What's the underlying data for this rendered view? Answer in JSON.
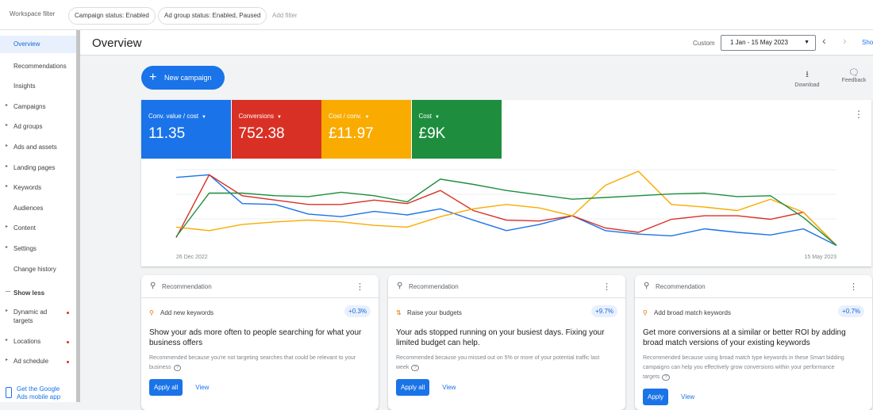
{
  "topbar": {
    "label": "Workspace filter",
    "chips": [
      "Campaign status: Enabled",
      "Ad group status: Enabled, Paused"
    ],
    "add_filter": "Add filter"
  },
  "sidebar": {
    "items": [
      {
        "label": "Overview",
        "active": true,
        "arrow": false,
        "dot": false
      },
      {
        "label": "Recommendations",
        "active": false,
        "arrow": false,
        "dot": false
      },
      {
        "label": "Insights",
        "active": false,
        "arrow": false,
        "dot": false
      },
      {
        "label": "Campaigns",
        "active": false,
        "arrow": true,
        "dot": false
      },
      {
        "label": "Ad groups",
        "active": false,
        "arrow": true,
        "dot": false
      },
      {
        "label": "Ads and assets",
        "active": false,
        "arrow": true,
        "dot": false
      },
      {
        "label": "Landing pages",
        "active": false,
        "arrow": true,
        "dot": false
      },
      {
        "label": "Keywords",
        "active": false,
        "arrow": true,
        "dot": false
      },
      {
        "label": "Audiences",
        "active": false,
        "arrow": false,
        "dot": false
      },
      {
        "label": "Content",
        "active": false,
        "arrow": true,
        "dot": false
      },
      {
        "label": "Settings",
        "active": false,
        "arrow": true,
        "dot": false
      },
      {
        "label": "Change history",
        "active": false,
        "arrow": false,
        "dot": false
      }
    ],
    "show_less": "Show less",
    "more_items": [
      {
        "label": "Dynamic ad targets",
        "active": false,
        "arrow": true,
        "dot": true
      },
      {
        "label": "Locations",
        "active": false,
        "arrow": true,
        "dot": true
      },
      {
        "label": "Ad schedule",
        "active": false,
        "arrow": true,
        "dot": true
      }
    ],
    "app_link": "Get the Google Ads mobile app"
  },
  "header": {
    "title": "Overview",
    "range_label": "Custom",
    "range": "1 Jan - 15 May 2023",
    "show": "Sho"
  },
  "actions": {
    "new_campaign": "New campaign",
    "download": "Download",
    "feedback": "Feedback"
  },
  "chart_data": {
    "type": "line",
    "ylim": [
      0,
      100
    ],
    "categories": [
      "26 Dec 2022",
      null,
      null,
      null,
      null,
      null,
      null,
      null,
      null,
      null,
      null,
      null,
      null,
      null,
      null,
      null,
      null,
      null,
      null,
      null,
      "15 May 2023"
    ],
    "series": [
      {
        "name": "Conv. value / cost",
        "summary": "11.35",
        "color": "#1a73e8",
        "values": [
          83,
          86,
          53,
          52,
          41,
          38,
          44,
          40,
          47,
          34,
          22,
          29,
          39,
          22,
          18,
          16,
          24,
          20,
          17,
          24,
          5
        ]
      },
      {
        "name": "Conversions",
        "summary": "752.38",
        "color": "#d93025",
        "values": [
          14,
          86,
          62,
          57,
          52,
          52,
          57,
          53,
          68,
          45,
          34,
          33,
          39,
          25,
          20,
          35,
          39,
          39,
          35,
          43,
          5
        ]
      },
      {
        "name": "Cost / conv.",
        "summary": "£11.97",
        "color": "#f9ab00",
        "values": [
          26,
          22,
          29,
          32,
          34,
          32,
          28,
          26,
          38,
          47,
          52,
          48,
          39,
          74,
          90,
          52,
          49,
          45,
          58,
          43,
          5
        ]
      },
      {
        "name": "Cost",
        "summary": "£9K",
        "color": "#1e8e3e",
        "values": [
          15,
          65,
          65,
          62,
          61,
          66,
          62,
          55,
          81,
          75,
          68,
          63,
          58,
          60,
          62,
          64,
          65,
          61,
          62,
          37,
          5
        ]
      }
    ]
  },
  "recommendations": [
    {
      "label": "Recommendation",
      "title": "Add new keywords",
      "badge": "+0.3%",
      "headline": "Show your ads more often to people searching for what your business offers",
      "reason": "Recommended because you're not targeting searches that could be relevant to your business",
      "primary": "Apply all",
      "secondary": "View"
    },
    {
      "label": "Recommendation",
      "title": "Raise your budgets",
      "badge": "+9.7%",
      "headline": "Your ads stopped running on your busiest days. Fixing your limited budget can help.",
      "reason": "Recommended because you missed out on 5% or more of your potential traffic last week",
      "primary": "Apply all",
      "secondary": "View"
    },
    {
      "label": "Recommendation",
      "title": "Add broad match keywords",
      "badge": "+0.7%",
      "headline": "Get more conversions at a similar or better ROI by adding broad match versions of your existing keywords",
      "reason": "Recommended because using broad match type keywords in these Smart bidding campaigns can help you effectively grow conversions within your performance targets",
      "primary": "Apply",
      "secondary": "View"
    }
  ]
}
